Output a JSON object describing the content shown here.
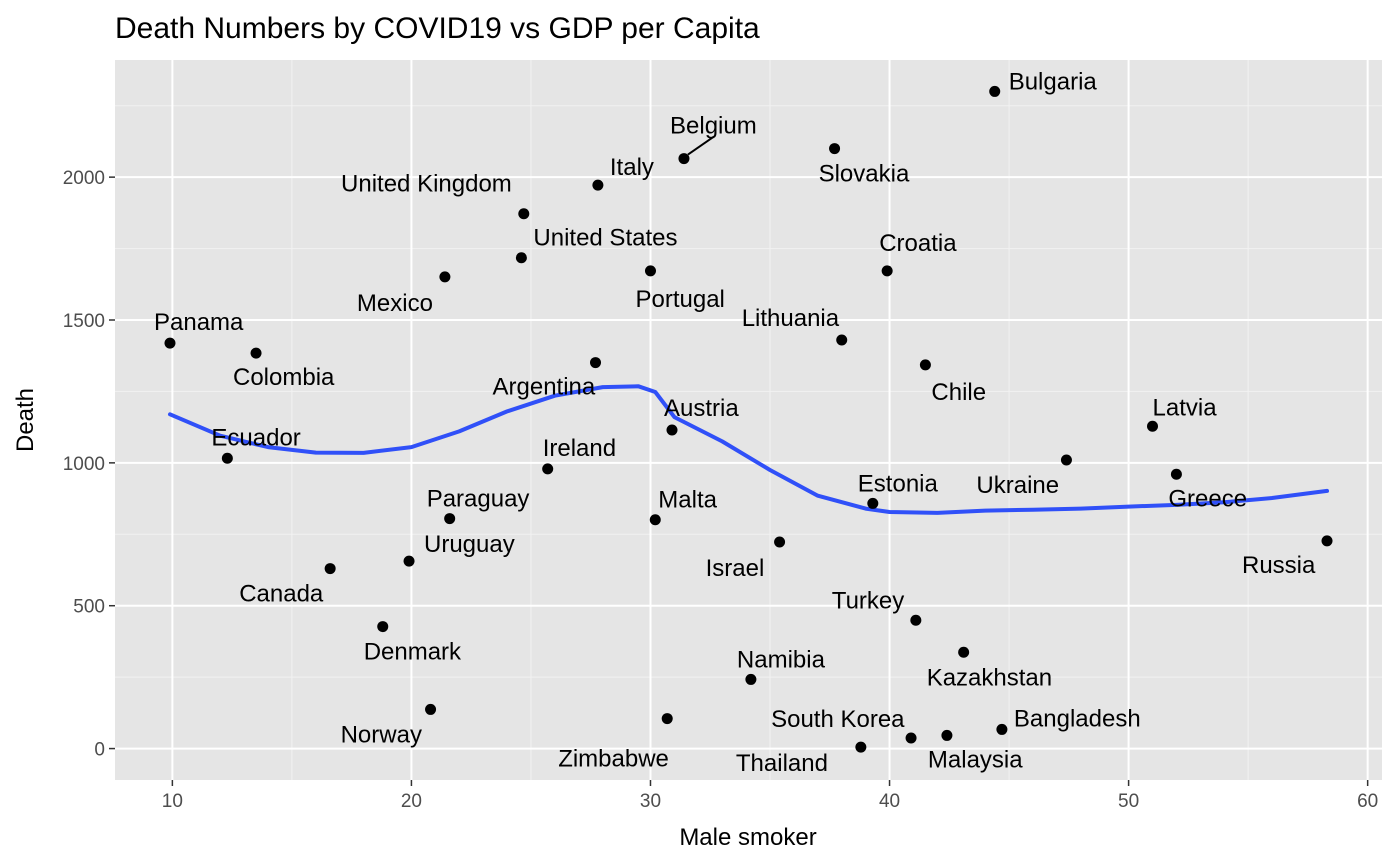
{
  "chart_data": {
    "type": "scatter",
    "title": "Death Numbers by COVID19 vs GDP per Capita",
    "xlabel": "Male smoker",
    "ylabel": "Death",
    "xlim": [
      7.6,
      60.6
    ],
    "ylim": [
      -110,
      2410
    ],
    "x_ticks": [
      10,
      20,
      30,
      40,
      50,
      60
    ],
    "y_ticks": [
      0,
      500,
      1000,
      1500,
      2000
    ],
    "x_tick_labels": [
      "10",
      "20",
      "30",
      "40",
      "50",
      "60"
    ],
    "y_tick_labels": [
      "0",
      "500",
      "1000",
      "1500",
      "2000"
    ],
    "grid": true,
    "background": "#e5e5e5",
    "grid_color": "#ffffff",
    "point_color": "#000000",
    "smooth_color": "#3050f8",
    "points": [
      {
        "label": "Bulgaria",
        "x": 44.4,
        "y": 2300
      },
      {
        "label": "Slovakia",
        "x": 37.7,
        "y": 2100
      },
      {
        "label": "Belgium",
        "x": 31.4,
        "y": 2065
      },
      {
        "label": "Italy",
        "x": 27.8,
        "y": 1972
      },
      {
        "label": "United Kingdom",
        "x": 24.7,
        "y": 1872
      },
      {
        "label": "United States",
        "x": 24.6,
        "y": 1718
      },
      {
        "label": "Croatia",
        "x": 39.9,
        "y": 1672
      },
      {
        "label": "Portugal",
        "x": 30.0,
        "y": 1672
      },
      {
        "label": "Mexico",
        "x": 21.4,
        "y": 1651
      },
      {
        "label": "Lithuania",
        "x": 38.0,
        "y": 1430
      },
      {
        "label": "Panama",
        "x": 9.9,
        "y": 1419
      },
      {
        "label": "Colombia",
        "x": 13.5,
        "y": 1384
      },
      {
        "label": "Argentina",
        "x": 27.7,
        "y": 1351
      },
      {
        "label": "Chile",
        "x": 41.5,
        "y": 1343
      },
      {
        "label": "Latvia",
        "x": 51.0,
        "y": 1128
      },
      {
        "label": "Austria",
        "x": 30.9,
        "y": 1115
      },
      {
        "label": "Ecuador",
        "x": 12.3,
        "y": 1016
      },
      {
        "label": "Ukraine",
        "x": 47.4,
        "y": 1010
      },
      {
        "label": "Ireland",
        "x": 25.7,
        "y": 979
      },
      {
        "label": "Greece",
        "x": 52.0,
        "y": 960
      },
      {
        "label": "Estonia",
        "x": 39.3,
        "y": 858
      },
      {
        "label": "Paraguay",
        "x": 21.6,
        "y": 805
      },
      {
        "label": "Malta",
        "x": 30.2,
        "y": 801
      },
      {
        "label": "Russia",
        "x": 58.3,
        "y": 727
      },
      {
        "label": "Israel",
        "x": 35.4,
        "y": 723
      },
      {
        "label": "Uruguay",
        "x": 19.9,
        "y": 656
      },
      {
        "label": "Canada",
        "x": 16.6,
        "y": 630
      },
      {
        "label": "Turkey",
        "x": 41.1,
        "y": 449
      },
      {
        "label": "Denmark",
        "x": 18.8,
        "y": 427
      },
      {
        "label": "Kazakhstan",
        "x": 43.1,
        "y": 337
      },
      {
        "label": "Namibia",
        "x": 34.2,
        "y": 242
      },
      {
        "label": "Norway",
        "x": 20.8,
        "y": 137
      },
      {
        "label": "Zimbabwe",
        "x": 30.7,
        "y": 105
      },
      {
        "label": "Bangladesh",
        "x": 44.7,
        "y": 67
      },
      {
        "label": "Malaysia",
        "x": 42.4,
        "y": 46
      },
      {
        "label": "South Korea",
        "x": 40.9,
        "y": 37
      },
      {
        "label": "Thailand",
        "x": 38.8,
        "y": 5
      }
    ],
    "smooth_line": {
      "x": [
        9.9,
        12,
        14,
        16,
        18,
        20,
        22,
        24,
        26,
        28,
        29.5,
        30.2,
        31,
        33,
        35,
        37,
        39,
        40,
        42,
        44,
        46,
        48,
        50,
        52,
        54,
        56,
        58.3
      ],
      "y": [
        1170,
        1095,
        1055,
        1036,
        1035,
        1055,
        1110,
        1180,
        1235,
        1265,
        1268,
        1248,
        1160,
        1075,
        975,
        885,
        840,
        828,
        825,
        833,
        836,
        840,
        847,
        853,
        862,
        877,
        902
      ]
    }
  }
}
